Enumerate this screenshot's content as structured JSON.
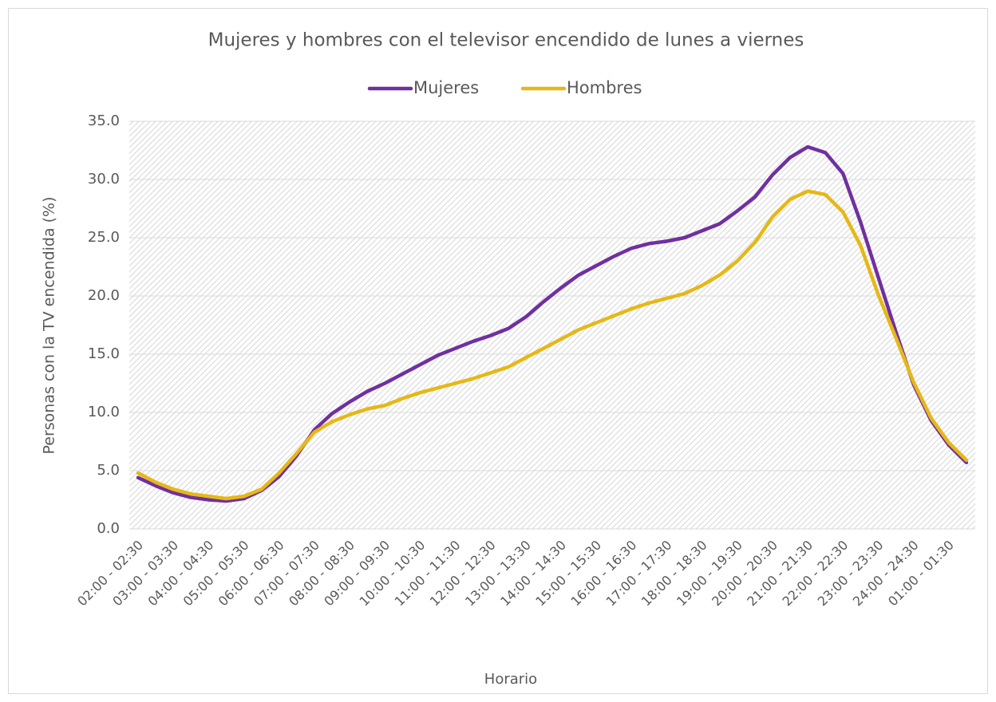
{
  "chart_data": {
    "type": "line",
    "title": "Mujeres y hombres con el televisor encendido de lunes a viernes",
    "x_label": "Horario",
    "y_label": "Personas con la TV encendida (%)",
    "categories": [
      "02:00 - 02:30",
      null,
      "03:00 - 03:30",
      null,
      "04:00 - 04:30",
      null,
      "05:00 - 05:30",
      null,
      "06:00 - 06:30",
      null,
      "07:00 - 07:30",
      null,
      "08:00 - 08:30",
      null,
      "09:00 - 09:30",
      null,
      "10:00 - 10:30",
      null,
      "11:00 - 11:30",
      null,
      "12:00 - 12:30",
      null,
      "13:00 - 13:30",
      null,
      "14:00 - 14:30",
      null,
      "15:00 - 15:30",
      null,
      "16:00 - 16:30",
      null,
      "17:00 - 17:30",
      null,
      "18:00 - 18:30",
      null,
      "19:00 - 19:30",
      null,
      "20:00 - 20:30",
      null,
      "21:00 - 21:30",
      null,
      "22:00 - 22:30",
      null,
      "23:00 - 23:30",
      null,
      "24:00 - 24:30",
      null,
      "01:00 - 01:30",
      null
    ],
    "series": [
      {
        "name": "Mujeres",
        "color": "#7030a0",
        "values": [
          4.4,
          3.7,
          3.1,
          2.7,
          2.5,
          2.4,
          2.6,
          3.3,
          4.5,
          6.3,
          8.5,
          9.9,
          10.9,
          11.8,
          12.5,
          13.3,
          14.1,
          14.9,
          15.5,
          16.1,
          16.6,
          17.2,
          18.2,
          19.5,
          20.7,
          21.8,
          22.6,
          23.4,
          24.1,
          24.5,
          24.7,
          25.0,
          25.6,
          26.2,
          27.3,
          28.5,
          30.4,
          31.9,
          32.8,
          32.3,
          30.5,
          26.3,
          21.6,
          16.9,
          12.4,
          9.3,
          7.2,
          5.7
        ]
      },
      {
        "name": "Hombres",
        "color": "#e6b817",
        "values": [
          4.8,
          4.0,
          3.4,
          3.0,
          2.8,
          2.6,
          2.8,
          3.4,
          4.8,
          6.5,
          8.3,
          9.2,
          9.8,
          10.3,
          10.6,
          11.2,
          11.7,
          12.1,
          12.5,
          12.9,
          13.4,
          13.9,
          14.7,
          15.5,
          16.3,
          17.1,
          17.7,
          18.3,
          18.9,
          19.4,
          19.8,
          20.2,
          20.9,
          21.8,
          23.0,
          24.6,
          26.8,
          28.3,
          29.0,
          28.7,
          27.2,
          24.3,
          20.1,
          16.4,
          12.6,
          9.5,
          7.4,
          5.9
        ]
      }
    ],
    "ylim": [
      0,
      35
    ],
    "yticks": [
      {
        "value": 0,
        "label": "0.0"
      },
      {
        "value": 5,
        "label": "5.0"
      },
      {
        "value": 10,
        "label": "10.0"
      },
      {
        "value": 15,
        "label": "15.0"
      },
      {
        "value": 20,
        "label": "20.0"
      },
      {
        "value": 25,
        "label": "25.0"
      },
      {
        "value": 30,
        "label": "30.0"
      },
      {
        "value": 35,
        "label": "35.0"
      }
    ],
    "grid": true,
    "legend": "top"
  }
}
